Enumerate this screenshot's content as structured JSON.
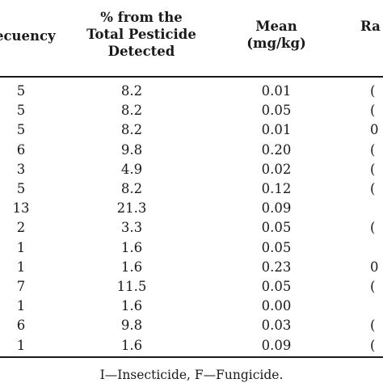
{
  "headers": {
    "frequency": "ecuency",
    "percent": [
      "% from the",
      "Total Pesticide",
      "Detected"
    ],
    "mean": [
      "Mean",
      "(mg/kg)"
    ],
    "range": "Ra"
  },
  "rows": [
    {
      "freq": "5",
      "pct": "8.2",
      "mean": "0.01",
      "range": "("
    },
    {
      "freq": "5",
      "pct": "8.2",
      "mean": "0.05",
      "range": "("
    },
    {
      "freq": "5",
      "pct": "8.2",
      "mean": "0.01",
      "range": "0"
    },
    {
      "freq": "6",
      "pct": "9.8",
      "mean": "0.20",
      "range": "("
    },
    {
      "freq": "3",
      "pct": "4.9",
      "mean": "0.02",
      "range": "("
    },
    {
      "freq": "5",
      "pct": "8.2",
      "mean": "0.12",
      "range": "("
    },
    {
      "freq": "13",
      "pct": "21.3",
      "mean": "0.09",
      "range": ""
    },
    {
      "freq": "2",
      "pct": "3.3",
      "mean": "0.05",
      "range": "("
    },
    {
      "freq": "1",
      "pct": "1.6",
      "mean": "0.05",
      "range": ""
    },
    {
      "freq": "1",
      "pct": "1.6",
      "mean": "0.23",
      "range": "0"
    },
    {
      "freq": "7",
      "pct": "11.5",
      "mean": "0.05",
      "range": "("
    },
    {
      "freq": "1",
      "pct": "1.6",
      "mean": "0.00",
      "range": ""
    },
    {
      "freq": "6",
      "pct": "9.8",
      "mean": "0.03",
      "range": "("
    },
    {
      "freq": "1",
      "pct": "1.6",
      "mean": "0.09",
      "range": "("
    }
  ],
  "footnote": "I—Insecticide, F—Fungicide."
}
